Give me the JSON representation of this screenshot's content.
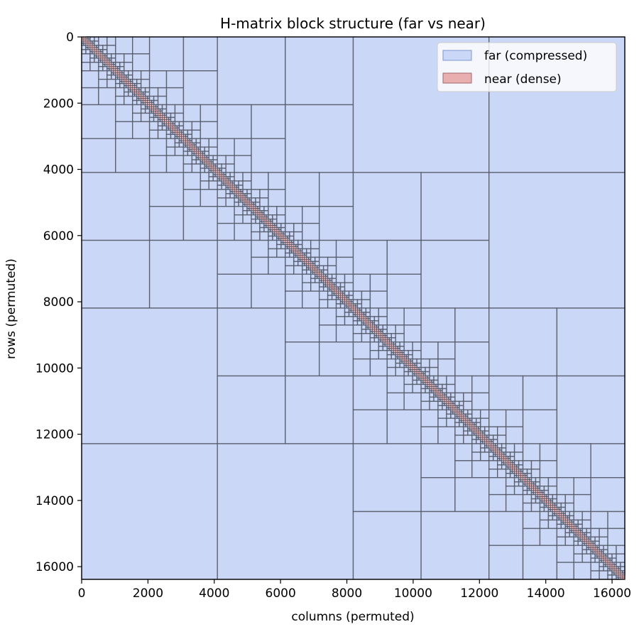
{
  "chart_data": {
    "type": "heatmap",
    "title": "H-matrix block structure (far vs near)",
    "xlabel": "columns (permuted)",
    "ylabel": "rows (permuted)",
    "matrix_size": 16384,
    "xlim": [
      0,
      16384
    ],
    "ylim": [
      16384,
      0
    ],
    "y_axis_inverted": true,
    "x_ticks": [
      0,
      2000,
      4000,
      6000,
      8000,
      10000,
      12000,
      14000,
      16000
    ],
    "y_ticks": [
      0,
      2000,
      4000,
      6000,
      8000,
      10000,
      12000,
      14000,
      16000
    ],
    "x_tick_labels": [
      "0",
      "2000",
      "4000",
      "6000",
      "8000",
      "10000",
      "12000",
      "14000",
      "16000"
    ],
    "y_tick_labels": [
      "0",
      "2000",
      "4000",
      "6000",
      "8000",
      "10000",
      "12000",
      "14000",
      "16000"
    ],
    "grid": false,
    "legend_position": "top-right",
    "legend": [
      {
        "label": "far (compressed)",
        "kind": "far"
      },
      {
        "label": "near (dense)",
        "kind": "near"
      }
    ],
    "colors": {
      "far_fill": "#cad7f6",
      "near_fill": "#e8aeb0",
      "block_edge": "#4a4f5c",
      "legend_far_edge": "#7f97cf",
      "legend_near_edge": "#a0696c"
    },
    "leaf_block_size": 64,
    "admissibility": "strong (hierarchical quadtree; near blocks clustered along the diagonal, recursively subdivided far blocks away from it)",
    "series": [
      {
        "name": "far (compressed)",
        "description": "low-rank compressed blocks"
      },
      {
        "name": "near (dense)",
        "description": "dense leaf blocks along diagonal"
      }
    ]
  }
}
